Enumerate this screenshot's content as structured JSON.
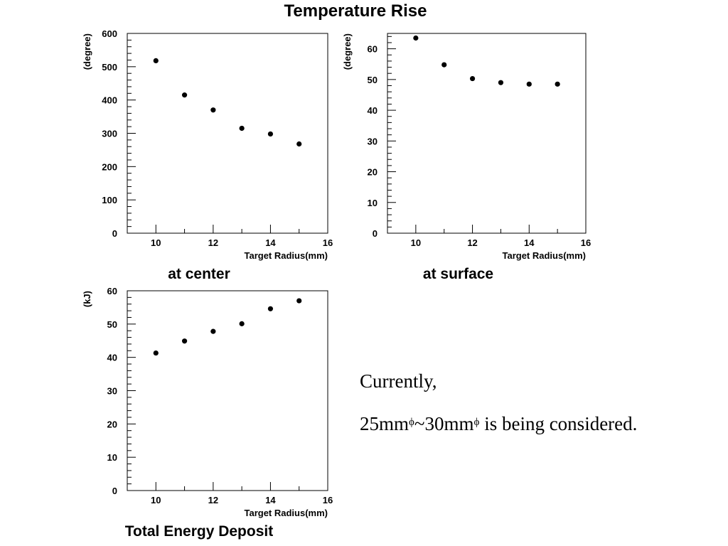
{
  "page_title": "Temperature Rise",
  "chart_data": [
    {
      "type": "scatter",
      "title": "at center",
      "xlabel": "Target Radius(mm)",
      "ylabel": "(degree)",
      "xlim": [
        9,
        16
      ],
      "ylim": [
        0,
        600
      ],
      "xticks": [
        10,
        12,
        14,
        16
      ],
      "yticks": [
        0,
        100,
        200,
        300,
        400,
        500,
        600
      ],
      "grid": false,
      "x": [
        10,
        11,
        12,
        13,
        14,
        15
      ],
      "y": [
        518,
        415,
        370,
        315,
        298,
        268
      ]
    },
    {
      "type": "scatter",
      "title": "at surface",
      "xlabel": "Target Radius(mm)",
      "ylabel": "(degree)",
      "xlim": [
        9,
        16
      ],
      "ylim": [
        0,
        65
      ],
      "xticks": [
        10,
        12,
        14,
        16
      ],
      "yticks": [
        0,
        10,
        20,
        30,
        40,
        50,
        60
      ],
      "grid": false,
      "x": [
        10,
        11,
        12,
        13,
        14,
        15
      ],
      "y": [
        63.5,
        54.8,
        50.3,
        49.0,
        48.5,
        48.5
      ]
    },
    {
      "type": "scatter",
      "title": "Total Energy Deposit",
      "xlabel": "Target Radius(mm)",
      "ylabel": "(kJ)",
      "xlim": [
        9,
        16
      ],
      "ylim": [
        0,
        60
      ],
      "xticks": [
        10,
        12,
        14,
        16
      ],
      "yticks": [
        0,
        10,
        20,
        30,
        40,
        50,
        60
      ],
      "grid": false,
      "x": [
        10,
        11,
        12,
        13,
        14,
        15
      ],
      "y": [
        41.3,
        44.9,
        47.8,
        50.1,
        54.6,
        57.0
      ]
    }
  ],
  "note": {
    "line1": "Currently,",
    "line2_a": "25mm",
    "line2_sup1": "ϕ",
    "line2_b": "~30mm",
    "line2_sup2": "ϕ",
    "line2_c": " is being considered."
  }
}
